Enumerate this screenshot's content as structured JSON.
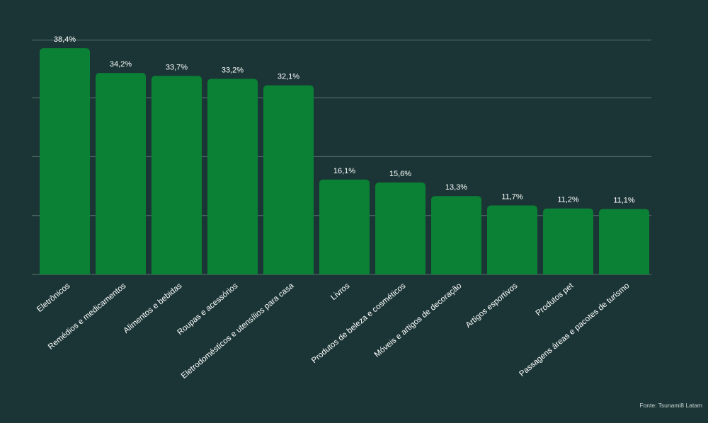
{
  "colors": {
    "background": "#1b3536",
    "bar": "#0a8135",
    "grid": "#5a7270",
    "text": "#ffffff"
  },
  "chart_data": {
    "type": "bar",
    "title": "",
    "xlabel": "",
    "ylabel": "",
    "ylim": [
      0,
      40
    ],
    "grid": true,
    "value_suffix": "%",
    "categories": [
      "Eletrônicos",
      "Remédios e medicamentos",
      "Alimentos e bebidas",
      "Roupas e acessórios",
      "Eletrodomésticos e utensílios para casa",
      "Livros",
      "Produtos de beleza e cosméticos",
      "Móveis e artigos de decoração",
      "Artigos esportivos",
      "Produtos pet",
      "Passagens áreas e pacotes de turismo"
    ],
    "values": [
      38.4,
      34.2,
      33.7,
      33.2,
      32.1,
      16.1,
      15.6,
      13.3,
      11.7,
      11.2,
      11.1
    ],
    "value_labels": [
      "38,4%",
      "34,2%",
      "33,7%",
      "33,2%",
      "32,1%",
      "16,1%",
      "15,6%",
      "13,3%",
      "11,7%",
      "11,2%",
      "11,1%"
    ]
  },
  "source": "Fonte: Tsunami8 Latam"
}
